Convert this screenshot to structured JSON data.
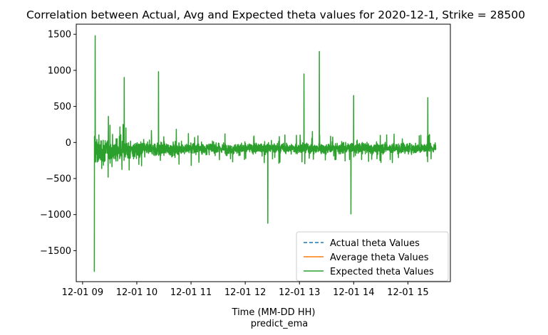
{
  "chart_data": {
    "type": "line",
    "title": "Correlation between Actual, Avg and Expected theta values for 2020-12-1, Strike = 28500",
    "xlabel": "Time (MM-DD HH)",
    "xlabel2": "predict_ema",
    "ylabel": "",
    "x_ticks": [
      "12-01 09",
      "12-01 10",
      "12-01 11",
      "12-01 12",
      "12-01 13",
      "12-01 14",
      "12-01 15"
    ],
    "y_ticks": [
      -1500,
      -1000,
      -500,
      0,
      500,
      1000,
      1500
    ],
    "xlim": [
      "2020-12-01 08:53",
      "2020-12-01 15:47"
    ],
    "ylim": [
      -1930,
      1640
    ],
    "legend_position": "lower-right",
    "grid": false,
    "series": [
      {
        "name": "Actual theta Values",
        "color": "#1f77b4",
        "style": "dashed"
      },
      {
        "name": "Average theta Values",
        "color": "#ff7f0e",
        "style": "solid"
      },
      {
        "name": "Expected theta Values",
        "color": "#2ca02c",
        "style": "solid",
        "notable_points": [
          {
            "x": "2020-12-01 09:14",
            "y": 1480
          },
          {
            "x": "2020-12-01 09:13",
            "y": -1790
          },
          {
            "x": "2020-12-01 12:25",
            "y": -1120
          },
          {
            "x": "2020-12-01 13:22",
            "y": 1260
          },
          {
            "x": "2020-12-01 13:57",
            "y": -990
          },
          {
            "x": "2020-12-01 13:05",
            "y": 950
          },
          {
            "x": "2020-12-01 10:24",
            "y": 980
          },
          {
            "x": "2020-12-01 09:46",
            "y": 900
          },
          {
            "x": "2020-12-01 14:00",
            "y": 650
          },
          {
            "x": "2020-12-01 15:22",
            "y": 620
          }
        ]
      }
    ]
  }
}
